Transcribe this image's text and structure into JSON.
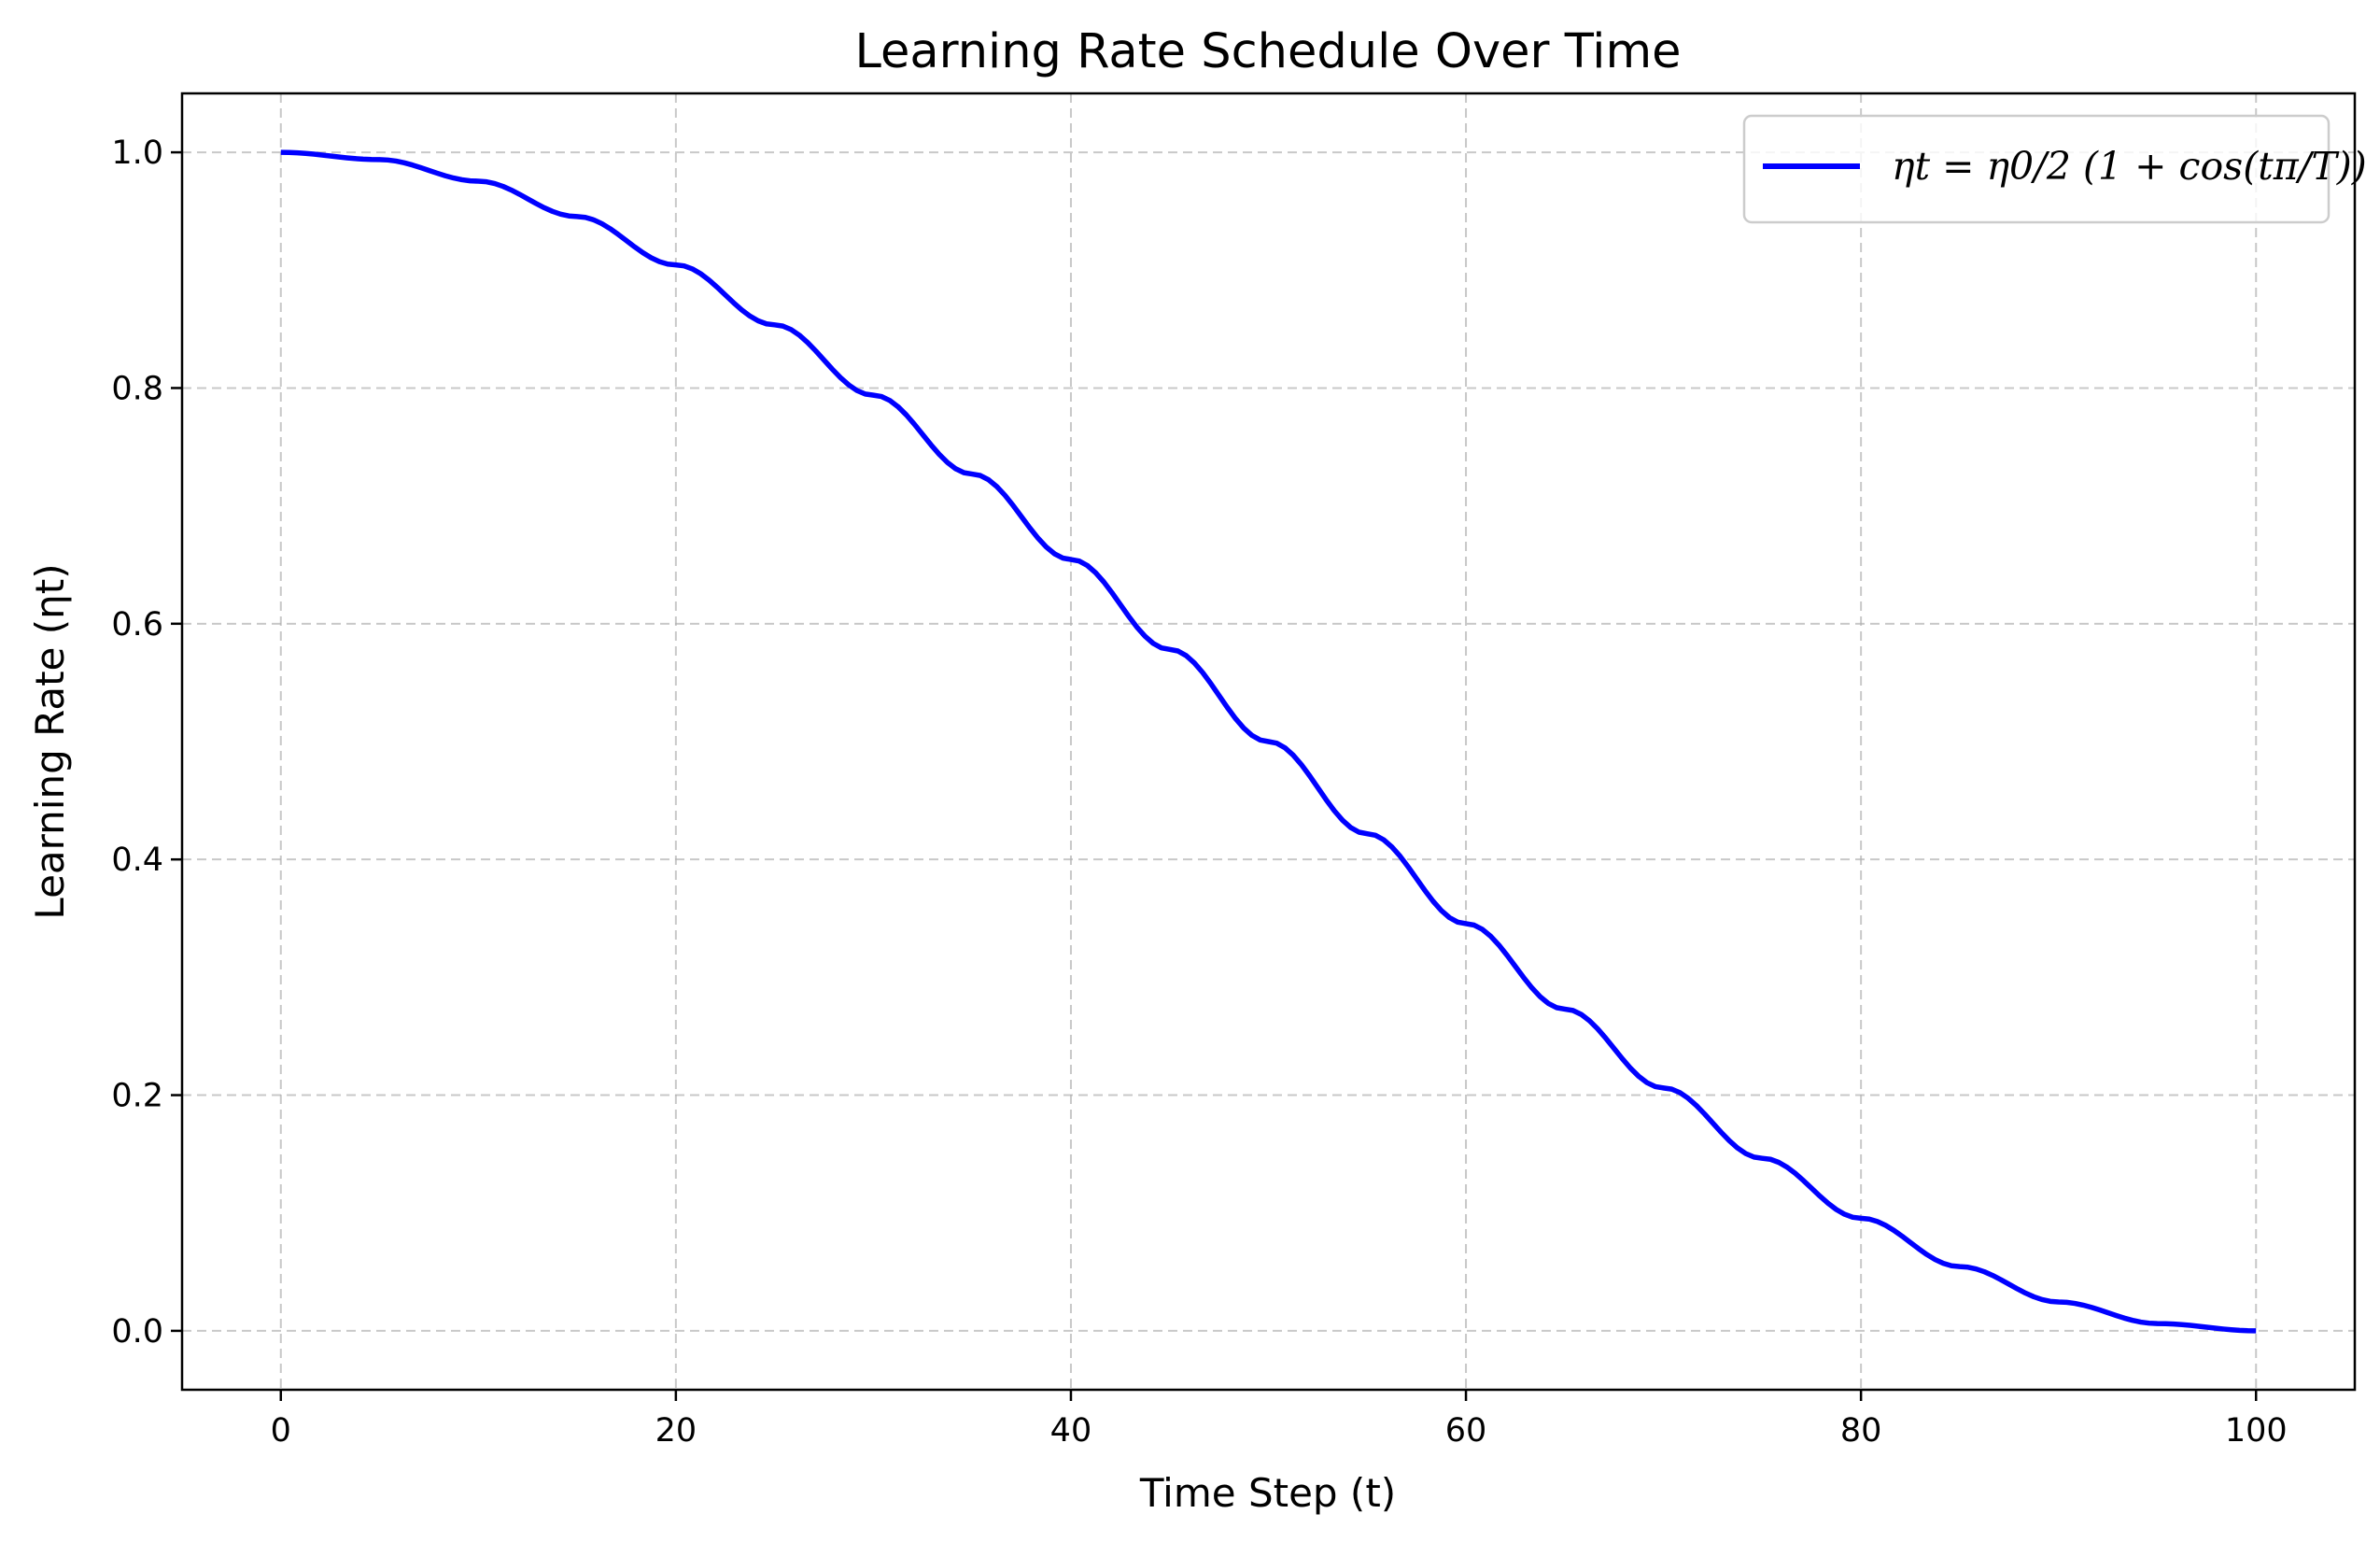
{
  "chart_data": {
    "type": "line",
    "title": "Learning Rate Schedule Over Time",
    "xlabel": "Time Step (t)",
    "ylabel": "Learning Rate (ηt)",
    "xlim": [
      -5,
      105
    ],
    "ylim": [
      -0.05,
      1.05
    ],
    "x_ticks": [
      0,
      20,
      40,
      60,
      80,
      100
    ],
    "x_tick_labels": [
      "0",
      "20",
      "40",
      "60",
      "80",
      "100"
    ],
    "y_ticks": [
      0.0,
      0.2,
      0.4,
      0.6,
      0.8,
      1.0
    ],
    "y_tick_labels": [
      "0.0",
      "0.2",
      "0.4",
      "0.6",
      "0.8",
      "1.0"
    ],
    "grid": true,
    "legend_position": "top-right",
    "series": [
      {
        "name": "ηt = η0/2 (1 + cos(tπ/T))",
        "color": "#0000ff",
        "x": [
          0,
          5,
          10,
          15,
          20,
          25,
          30,
          35,
          40,
          45,
          50,
          55,
          60,
          65,
          70,
          75,
          80,
          85,
          90,
          95,
          100
        ],
        "values": [
          1.0,
          0.9938,
          0.9755,
          0.9455,
          0.9045,
          0.8536,
          0.7939,
          0.727,
          0.6545,
          0.5782,
          0.5,
          0.4218,
          0.3455,
          0.273,
          0.2061,
          0.1464,
          0.0955,
          0.0545,
          0.0245,
          0.0062,
          0.0
        ]
      }
    ]
  }
}
